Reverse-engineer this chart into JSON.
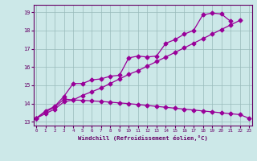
{
  "xlabel": "Windchill (Refroidissement éolien,°C)",
  "bg_color": "#cce8e8",
  "line_color": "#990099",
  "ylim": [
    12.8,
    19.4
  ],
  "xlim": [
    -0.3,
    23.3
  ],
  "yticks": [
    13,
    14,
    15,
    16,
    17,
    18,
    19
  ],
  "xticks": [
    0,
    1,
    2,
    3,
    4,
    5,
    6,
    7,
    8,
    9,
    10,
    11,
    12,
    13,
    14,
    15,
    16,
    17,
    18,
    19,
    20,
    21,
    22,
    23
  ],
  "line_upper_x": [
    0,
    1,
    2,
    3,
    4,
    5,
    6,
    7,
    8,
    9,
    10,
    11,
    12,
    13,
    14,
    15,
    16,
    17,
    18,
    19,
    20,
    21
  ],
  "line_upper_y": [
    13.2,
    13.6,
    13.85,
    14.4,
    15.1,
    15.1,
    15.3,
    15.35,
    15.5,
    15.55,
    16.5,
    16.6,
    16.55,
    16.6,
    17.3,
    17.5,
    17.8,
    18.0,
    18.85,
    18.95,
    18.9,
    18.5
  ],
  "line_diag_x": [
    0,
    1,
    2,
    3,
    4,
    5,
    6,
    7,
    8,
    9,
    10,
    11,
    12,
    13,
    14,
    15,
    16,
    17,
    18,
    19,
    20,
    21,
    22
  ],
  "line_diag_y": [
    13.2,
    13.45,
    13.7,
    14.1,
    14.2,
    14.45,
    14.65,
    14.85,
    15.1,
    15.35,
    15.6,
    15.8,
    16.05,
    16.3,
    16.55,
    16.8,
    17.05,
    17.3,
    17.55,
    17.8,
    18.05,
    18.3,
    18.55
  ],
  "line_lower_x": [
    0,
    1,
    2,
    3,
    4,
    5,
    6,
    7,
    8,
    9,
    10,
    11,
    12,
    13,
    14,
    15,
    16,
    17,
    18,
    19,
    20,
    21,
    22,
    23
  ],
  "line_lower_y": [
    13.2,
    13.55,
    13.8,
    14.25,
    14.2,
    14.18,
    14.15,
    14.12,
    14.08,
    14.04,
    14.0,
    13.95,
    13.9,
    13.85,
    13.8,
    13.75,
    13.7,
    13.65,
    13.6,
    13.55,
    13.5,
    13.45,
    13.4,
    13.2
  ],
  "marker": "D",
  "marker_size": 2.5,
  "linewidth": 0.9
}
